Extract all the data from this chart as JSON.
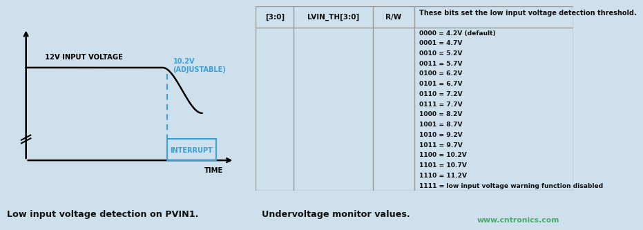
{
  "bg_color": "#cde0ec",
  "fig_width": 8.38,
  "fig_height": 3.27,
  "left_panel": {
    "voltage_label": "12V INPUT VOLTAGE",
    "adjustable_label": "10.2V\n(ADJUSTABLE)",
    "interrupt_label": "INTERRUPT",
    "time_label": "TIME",
    "caption": "Low input voltage detection on PVIN1.",
    "signal_color": "#000000",
    "interrupt_color": "#3a9fd4",
    "dashed_color": "#3a9fd4"
  },
  "right_panel": {
    "col1_header": "[3:0]",
    "col2_header": "LVIN_TH[3:0]",
    "col3_header": "R/W",
    "col4_header": "These bits set the low input voltage detection threshold.",
    "table_rows": [
      "0000 = 4.2V (default)",
      "0001 = 4.7V",
      "0010 = 5.2V",
      "0011 = 5.7V",
      "0100 = 6.2V",
      "0101 = 6.7V",
      "0110 = 7.2V",
      "0111 = 7.7V",
      "1000 = 8.2V",
      "1001 = 8.7V",
      "1010 = 9.2V",
      "1011 = 9.7V",
      "1100 = 10.2V",
      "1101 = 10.7V",
      "1110 = 11.2V",
      "1111 = low input voltage warning function disabled"
    ],
    "caption": "Undervoltage monitor values.",
    "watermark": "www.cntronics.com",
    "watermark_color": "#4aaa6a",
    "border_color": "#999999",
    "text_color": "#111111"
  }
}
